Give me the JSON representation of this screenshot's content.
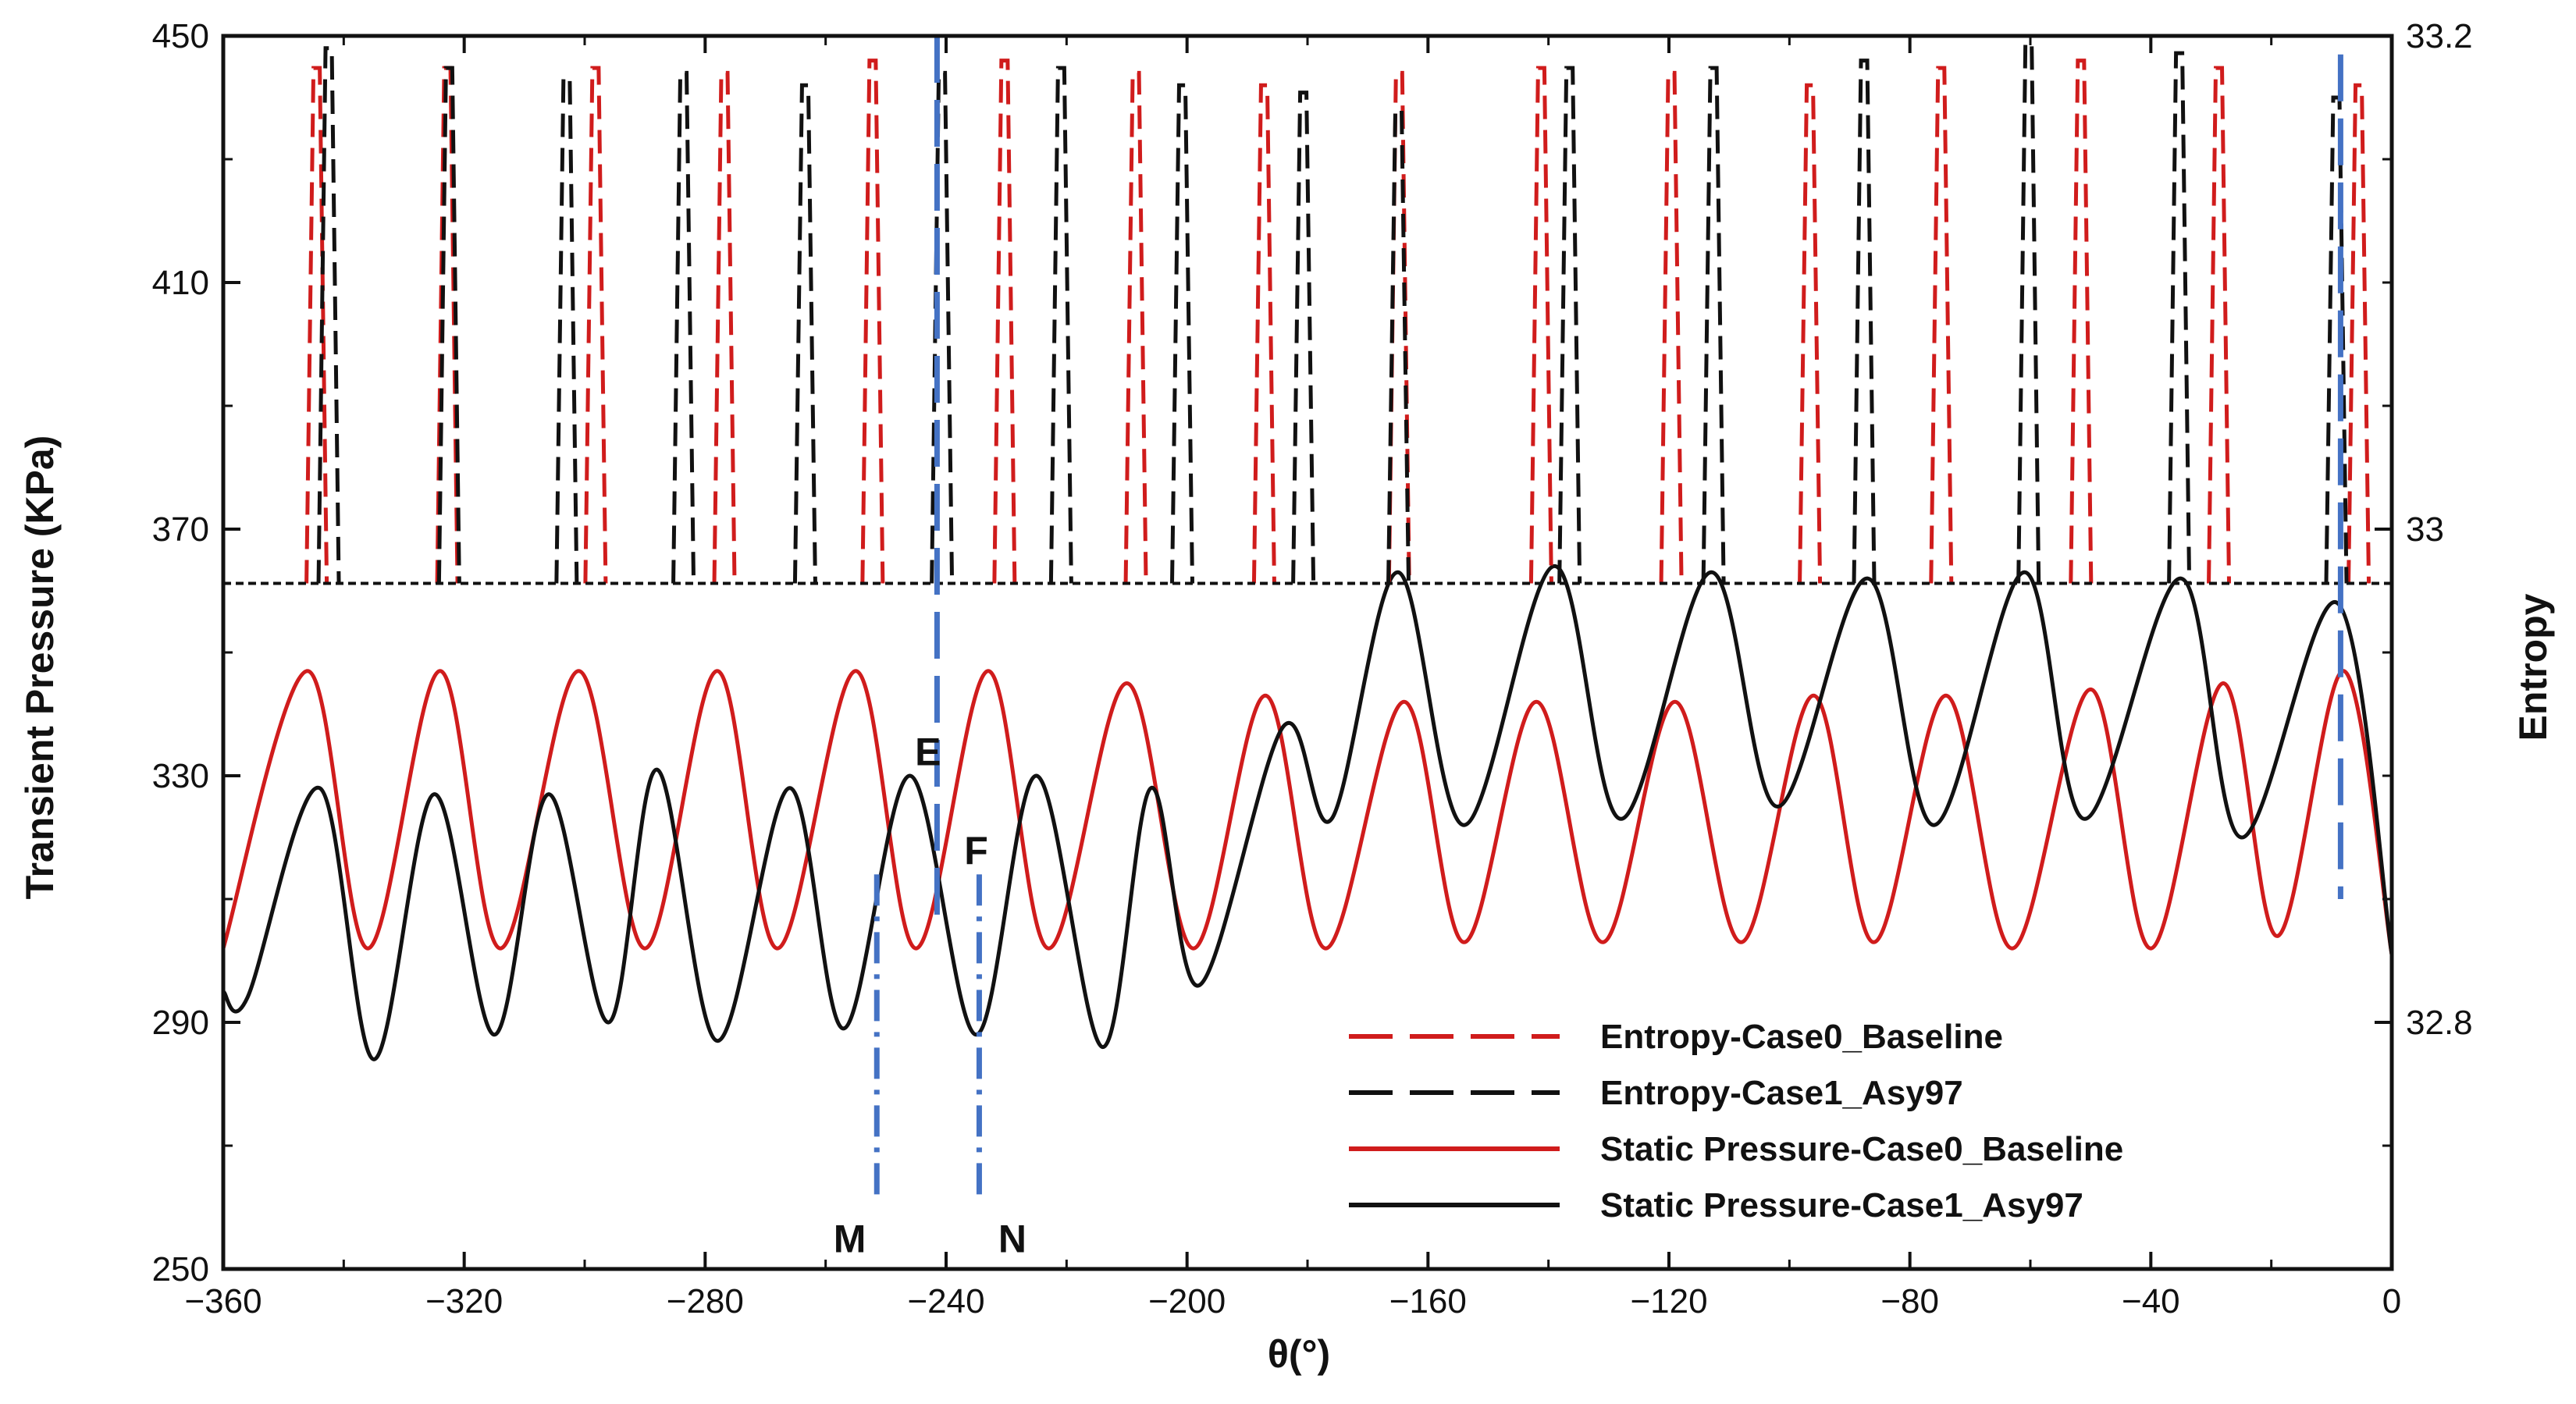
{
  "chart_data": {
    "type": "line",
    "title": "",
    "xlabel": "θ(°)",
    "ylabel": "Transient Pressure (KPa)",
    "y2label": "Entropy",
    "xlim": [
      -360,
      0
    ],
    "ylim": [
      250,
      450
    ],
    "y2lim": [
      32.7,
      33.2
    ],
    "x_ticks": [
      -360,
      -320,
      -280,
      -240,
      -200,
      -160,
      -120,
      -80,
      -40,
      0
    ],
    "x_tick_labels": [
      "−360",
      "−320",
      "−280",
      "−240",
      "−200",
      "−160",
      "−120",
      "−80",
      "−40",
      "0"
    ],
    "y_ticks": [
      250,
      290,
      330,
      370,
      410,
      450
    ],
    "y_tick_labels": [
      "250",
      "290",
      "330",
      "370",
      "410",
      "450"
    ],
    "y2_ticks": [
      32.8,
      33.0,
      33.2
    ],
    "y2_tick_labels": [
      "32.8",
      "33",
      "33.2"
    ],
    "legend_position": "bottom-right",
    "series": [
      {
        "name": "Entropy-Case0_Baseline",
        "axis": "right",
        "color": "#d01c1c",
        "style": "dashed",
        "baseline": 32.978,
        "peak_positions": [
          -344.5,
          -322.8,
          -298.2,
          -276.8,
          -252.2,
          -230.3,
          -208.5,
          -187.2,
          -164.8,
          -141.2,
          -119.6,
          -96.6,
          -74.8,
          -51.6,
          -28.7,
          -5.5
        ],
        "peak_values": [
          33.187,
          33.187,
          33.187,
          33.185,
          33.19,
          33.19,
          33.185,
          33.18,
          33.185,
          33.187,
          33.185,
          33.18,
          33.187,
          33.19,
          33.187,
          33.18
        ]
      },
      {
        "name": "Entropy-Case1_Asy97",
        "axis": "right",
        "color": "#111111",
        "style": "dashed",
        "baseline": 32.978,
        "peak_positions": [
          -342.5,
          -322.5,
          -303.0,
          -283.6,
          -263.4,
          -240.7,
          -220.9,
          -200.8,
          -180.7,
          -164.9,
          -136.5,
          -112.6,
          -87.6,
          -60.3,
          -35.3,
          -9.2
        ],
        "peak_values": [
          33.195,
          33.187,
          33.183,
          33.185,
          33.18,
          33.185,
          33.187,
          33.18,
          33.177,
          33.17,
          33.187,
          33.187,
          33.19,
          33.197,
          33.193,
          33.175
        ]
      },
      {
        "name": "Static Pressure-Case0_Baseline",
        "axis": "left",
        "color": "#d01c1c",
        "style": "solid",
        "x": [
          -360,
          -346,
          -336,
          -324,
          -314,
          -301,
          -290,
          -278,
          -268,
          -255,
          -245,
          -233,
          -223,
          -210,
          -199,
          -187,
          -177,
          -164,
          -154,
          -142,
          -131,
          -119,
          -108,
          -96,
          -86,
          -74,
          -63,
          -50,
          -40,
          -28,
          -19,
          -8,
          0
        ],
        "y": [
          302,
          347,
          302,
          347,
          302,
          347,
          302,
          347,
          302,
          347,
          302,
          347,
          302,
          345,
          302,
          343,
          302,
          342,
          303,
          342,
          303,
          342,
          303,
          343,
          303,
          343,
          302,
          344,
          302,
          345,
          304,
          347,
          301
        ]
      },
      {
        "name": "Static Pressure-Case1_Asy97",
        "axis": "left",
        "color": "#111111",
        "style": "solid",
        "x": [
          -360,
          -356,
          -344,
          -335,
          -325,
          -315,
          -306,
          -296,
          -288,
          -278,
          -266,
          -257,
          -246,
          -235,
          -225,
          -214,
          -206,
          -198,
          -184,
          -176,
          -165,
          -154,
          -139,
          -128,
          -113,
          -102,
          -87,
          -76,
          -61,
          -51,
          -35,
          -25,
          -9,
          0
        ],
        "y": [
          295,
          294,
          328,
          284,
          327,
          288,
          327,
          290,
          331,
          287,
          328,
          289,
          330,
          288,
          330,
          286,
          328,
          296,
          338,
          323,
          363,
          322,
          364,
          323,
          363,
          325,
          362,
          322,
          363,
          323,
          362,
          320,
          358,
          301
        ]
      }
    ],
    "reference_lines": [
      {
        "x": -241.5,
        "y_from": 306,
        "y_to": 450,
        "color": "#4472c4",
        "style": "dash"
      },
      {
        "x": -8.5,
        "y_from": 310,
        "y_to": 447,
        "color": "#4472c4",
        "style": "dash"
      },
      {
        "x": -251.5,
        "y_from": 261,
        "y_to": 314,
        "color": "#4472c4",
        "style": "dashdot"
      },
      {
        "x": -234.5,
        "y_from": 261,
        "y_to": 314,
        "color": "#4472c4",
        "style": "dashdot"
      }
    ],
    "annotations": [
      {
        "text": "E",
        "x": -243,
        "y": 334
      },
      {
        "text": "F",
        "x": -235,
        "y": 318
      },
      {
        "text": "M",
        "x": -256,
        "y": 255
      },
      {
        "text": "N",
        "x": -229,
        "y": 255
      }
    ]
  }
}
